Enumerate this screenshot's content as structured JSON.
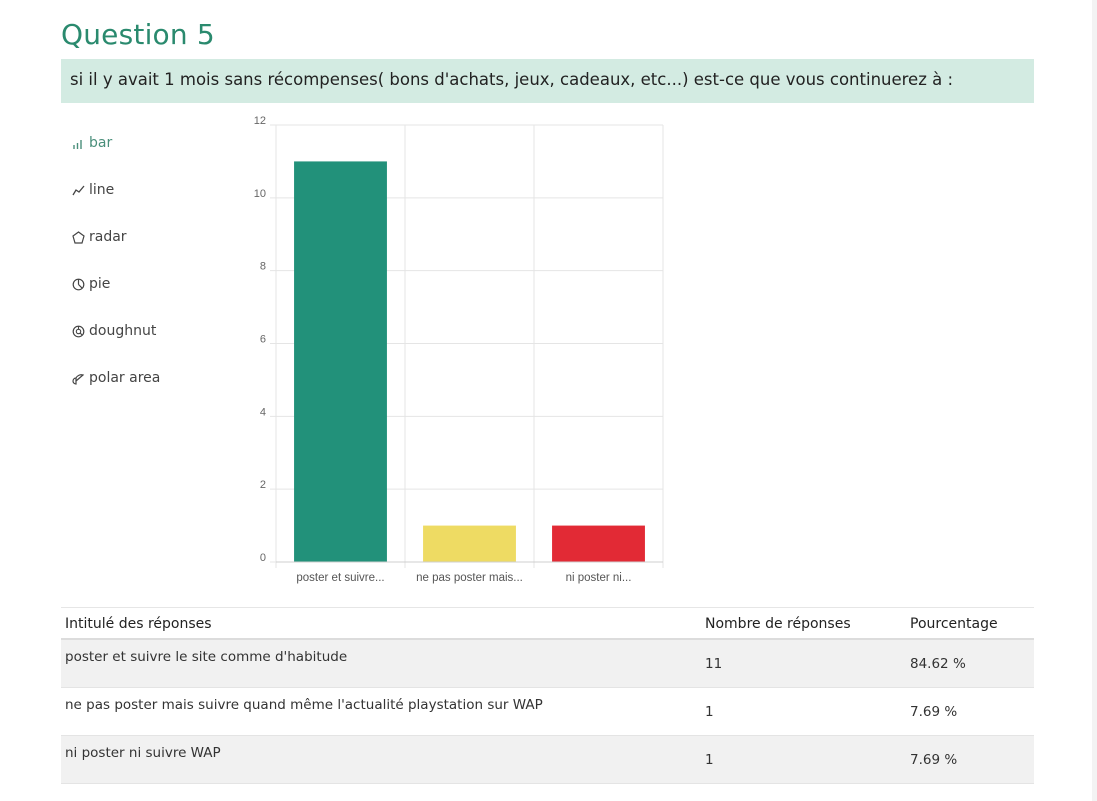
{
  "question": {
    "title": "Question 5",
    "text": "si il y avait 1 mois sans récompenses( bons d'achats, jeux, cadeaux, etc...) est-ce que vous continuerez à :"
  },
  "chart_types": [
    {
      "label": "bar",
      "icon": "bar-chart-icon",
      "active": true
    },
    {
      "label": "line",
      "icon": "line-chart-icon",
      "active": false
    },
    {
      "label": "radar",
      "icon": "radar-chart-icon",
      "active": false
    },
    {
      "label": "pie",
      "icon": "pie-chart-icon",
      "active": false
    },
    {
      "label": "doughnut",
      "icon": "doughnut-chart-icon",
      "active": false
    },
    {
      "label": "polar area",
      "icon": "polar-area-chart-icon",
      "active": false
    }
  ],
  "colors": {
    "accent": "#2a8a6e",
    "question_bg": "#d3ebe2",
    "bars": [
      "#22917a",
      "#eedb63",
      "#e22a35"
    ]
  },
  "chart_data": {
    "type": "bar",
    "categories": [
      "poster et suivre...",
      "ne pas poster mais...",
      "ni poster ni..."
    ],
    "values": [
      11,
      1,
      1
    ],
    "ylim": [
      0,
      12
    ],
    "yticks": [
      0,
      2,
      4,
      6,
      8,
      10,
      12
    ],
    "grid": true,
    "legend": "none"
  },
  "table": {
    "headers": {
      "label": "Intitulé des réponses",
      "count": "Nombre de réponses",
      "pct": "Pourcentage"
    },
    "rows": [
      {
        "label": "poster et suivre le site comme d'habitude",
        "count": "11",
        "pct": "84.62 %"
      },
      {
        "label": "ne pas poster mais suivre quand même l'actualité playstation sur WAP",
        "count": "1",
        "pct": "7.69 %"
      },
      {
        "label": "ni poster ni suivre WAP",
        "count": "1",
        "pct": "7.69 %"
      }
    ]
  }
}
